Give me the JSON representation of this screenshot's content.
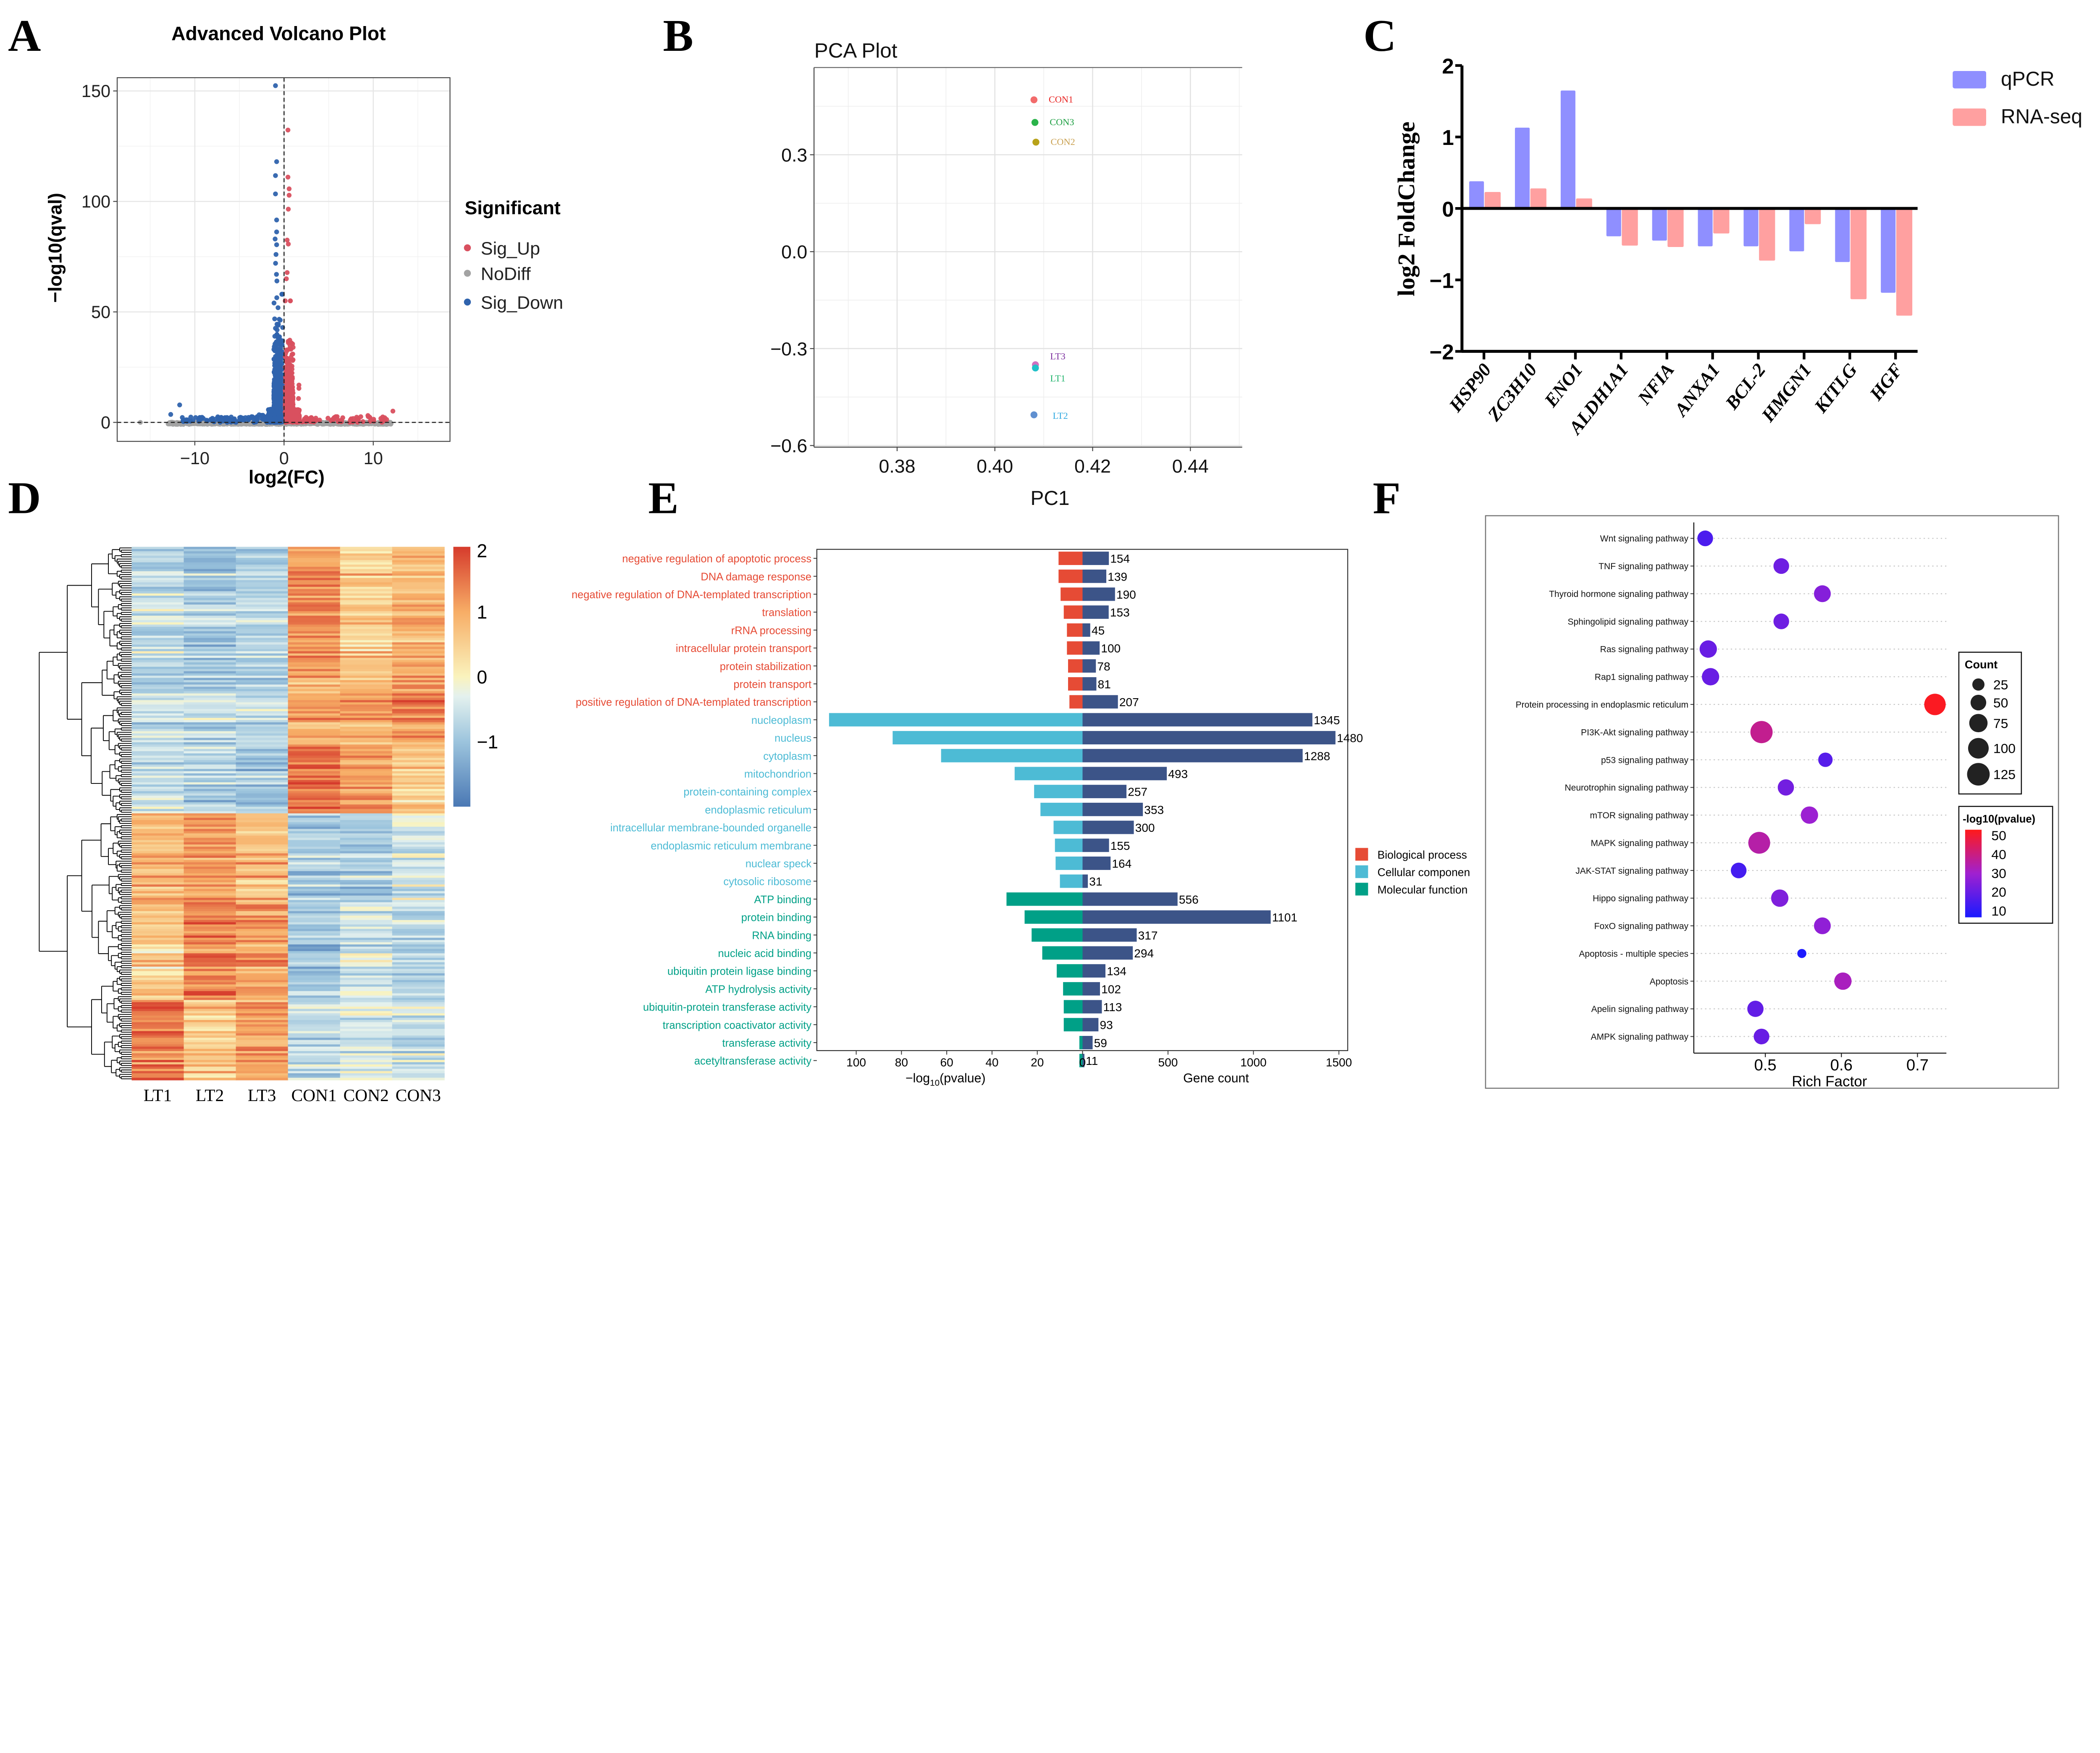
{
  "panel_labels": [
    "A",
    "B",
    "C",
    "D",
    "E",
    "F"
  ],
  "chart_data": [
    {
      "panel": "A",
      "type": "scatter",
      "title": "Advanced Volcano Plot",
      "xlabel": "log2(FC)",
      "ylabel": "−log10(qval)",
      "xlim": [
        -18.7,
        18.6
      ],
      "ylim": [
        -8.6,
        156
      ],
      "xticks": [
        -10,
        0,
        10
      ],
      "xtick_labels": [
        "−10",
        "0",
        "10"
      ],
      "yticks": [
        0,
        50,
        100,
        150
      ],
      "ytick_labels": [
        "0",
        "50",
        "100",
        "150"
      ],
      "grid": true,
      "legend_title": "Significant",
      "legend_position": "right",
      "series": [
        {
          "name": "Sig_Up",
          "color": "#d9505f"
        },
        {
          "name": "NoDiff",
          "color": "#a3a3a3"
        },
        {
          "name": "Sig_Down",
          "color": "#2f63ad"
        }
      ],
      "reference_lines": {
        "x": 0,
        "y": 0
      },
      "notable_points": [
        {
          "x": -0.96,
          "y": 152.4,
          "group": "Sig_Down"
        },
        {
          "x": -0.83,
          "y": 118,
          "group": "Sig_Down"
        },
        {
          "x": -0.96,
          "y": 111.7,
          "group": "Sig_Down"
        },
        {
          "x": -0.96,
          "y": 103.4,
          "group": "Sig_Down"
        },
        {
          "x": -0.83,
          "y": 91.6,
          "group": "Sig_Down"
        },
        {
          "x": -0.83,
          "y": 86.2,
          "group": "Sig_Down"
        },
        {
          "x": -1.0,
          "y": 83,
          "group": "Sig_Down"
        },
        {
          "x": -0.83,
          "y": 80.4,
          "group": "Sig_Down"
        },
        {
          "x": -0.9,
          "y": 76,
          "group": "Sig_Down"
        },
        {
          "x": -0.95,
          "y": 72,
          "group": "Sig_Down"
        },
        {
          "x": -0.85,
          "y": 67,
          "group": "Sig_Down"
        },
        {
          "x": -0.8,
          "y": 64,
          "group": "Sig_Down"
        },
        {
          "x": -12.7,
          "y": 3.6,
          "group": "Sig_Down"
        },
        {
          "x": -11.7,
          "y": 7.9,
          "group": "Sig_Down"
        },
        {
          "x": -11.4,
          "y": 2.2,
          "group": "Sig_Down"
        },
        {
          "x": 0.44,
          "y": 132.3,
          "group": "Sig_Up"
        },
        {
          "x": 0.44,
          "y": 111,
          "group": "Sig_Up"
        },
        {
          "x": 0.57,
          "y": 105.7,
          "group": "Sig_Up"
        },
        {
          "x": 0.57,
          "y": 102.8,
          "group": "Sig_Up"
        },
        {
          "x": 0.48,
          "y": 96.5,
          "group": "Sig_Up"
        },
        {
          "x": 0.35,
          "y": 82.5,
          "group": "Sig_Up"
        },
        {
          "x": 0.48,
          "y": 80.7,
          "group": "Sig_Up"
        },
        {
          "x": 0.35,
          "y": 67.8,
          "group": "Sig_Up"
        },
        {
          "x": 0.26,
          "y": 65,
          "group": "Sig_Up"
        },
        {
          "x": 1.67,
          "y": 16.9,
          "group": "Sig_Up"
        },
        {
          "x": 1.67,
          "y": 15.4,
          "group": "Sig_Up"
        },
        {
          "x": 1.62,
          "y": 10.8,
          "group": "Sig_Up"
        },
        {
          "x": 12.2,
          "y": 5.1,
          "group": "Sig_Up"
        },
        {
          "x": 11.5,
          "y": 1.3,
          "group": "Sig_Up"
        },
        {
          "x": 9.4,
          "y": 3.1,
          "group": "Sig_Up"
        },
        {
          "x": -16.1,
          "y": 0,
          "group": "NoDiff"
        }
      ]
    },
    {
      "panel": "B",
      "type": "scatter",
      "title": "PCA Plot",
      "xlabel": "PC1",
      "ylabel": "",
      "xlim": [
        0.363,
        0.4506
      ],
      "ylim": [
        -0.605,
        0.57
      ],
      "xticks": [
        0.38,
        0.4,
        0.42,
        0.44
      ],
      "xtick_labels": [
        "0.38",
        "0.40",
        "0.42",
        "0.44"
      ],
      "yticks": [
        -0.6,
        -0.3,
        0.0,
        0.3
      ],
      "ytick_labels": [
        "−0.6",
        "−0.3",
        "0.0",
        "0.3"
      ],
      "grid": true,
      "points": [
        {
          "label": "CON1",
          "x": 0.408,
          "y": 0.47,
          "color": "#f26b6b",
          "label_color": "#e8201e"
        },
        {
          "label": "CON3",
          "x": 0.4082,
          "y": 0.4,
          "color": "#2ab34a",
          "label_color": "#1a9e40"
        },
        {
          "label": "CON2",
          "x": 0.4084,
          "y": 0.339,
          "color": "#b8a21a",
          "label_color": "#c9a050"
        },
        {
          "label": "LT3",
          "x": 0.4083,
          "y": -0.35,
          "color": "#d070c0",
          "label_color": "#7b2f9e"
        },
        {
          "label": "LT1",
          "x": 0.4083,
          "y": -0.36,
          "color": "#22c0c8",
          "label_color": "#1fb36b"
        },
        {
          "label": "LT2",
          "x": 0.408,
          "y": -0.505,
          "color": "#6090d0",
          "label_color": "#2fa8e0"
        }
      ]
    },
    {
      "panel": "C",
      "type": "bar",
      "ylabel": "log2 FoldChange",
      "categories": [
        "HSP90",
        "ZC3H10",
        "ENO1",
        "ALDH1A1",
        "NFIA",
        "ANXA1",
        "BCL-2",
        "HMGN1",
        "KITLG",
        "HGF"
      ],
      "series": [
        {
          "name": "qPCR",
          "color": "#8f8fff",
          "values": [
            0.38,
            1.13,
            1.65,
            -0.39,
            -0.45,
            -0.53,
            -0.53,
            -0.6,
            -0.75,
            -1.18
          ]
        },
        {
          "name": "RNA-seq",
          "color": "#ffa0a0",
          "values": [
            0.23,
            0.28,
            0.14,
            -0.52,
            -0.54,
            -0.35,
            -0.73,
            -0.22,
            -1.27,
            -1.5
          ]
        }
      ],
      "ylim": [
        -2,
        2
      ],
      "yticks": [
        2,
        1,
        0,
        -1,
        -2
      ],
      "ytick_labels": [
        "2",
        "1",
        "0",
        "−1",
        "−2"
      ],
      "legend_position": "top-right"
    },
    {
      "panel": "D",
      "type": "heatmap",
      "columns": [
        "LT1",
        "LT2",
        "LT3",
        "CON1",
        "CON2",
        "CON3"
      ],
      "colorbar": {
        "min": -2,
        "max": 2,
        "ticks": [
          2,
          1,
          0,
          -1
        ],
        "tick_labels": [
          "2",
          "1",
          "0",
          "−1"
        ],
        "stops": [
          {
            "v": -2,
            "c": "#4a78b4"
          },
          {
            "v": -1,
            "c": "#9cc4dd"
          },
          {
            "v": -0.3,
            "c": "#e4f1ee"
          },
          {
            "v": 0,
            "c": "#faf3bd"
          },
          {
            "v": 1,
            "c": "#f7ad66"
          },
          {
            "v": 2,
            "c": "#d63b2c"
          }
        ]
      },
      "row_dendrogram": true,
      "row_clusters": [
        {
          "fraction": 0.25,
          "means": [
            -0.6,
            -0.9,
            -0.7,
            1.3,
            0.6,
            0.9
          ]
        },
        {
          "fraction": 0.12,
          "means": [
            -0.7,
            -0.7,
            -0.6,
            1.0,
            1.0,
            1.3
          ]
        },
        {
          "fraction": 0.13,
          "means": [
            -0.6,
            -0.8,
            -0.9,
            1.5,
            1.1,
            0.6
          ]
        },
        {
          "fraction": 0.17,
          "means": [
            0.9,
            1.2,
            0.8,
            -0.9,
            -0.8,
            -0.4
          ]
        },
        {
          "fraction": 0.18,
          "means": [
            0.5,
            1.4,
            1.1,
            -0.9,
            -0.5,
            -0.7
          ]
        },
        {
          "fraction": 0.15,
          "means": [
            1.4,
            0.6,
            1.1,
            -0.6,
            -0.4,
            -0.5
          ]
        }
      ]
    },
    {
      "panel": "E",
      "type": "bar",
      "xlabel_left": {
        "pre": "−log",
        "sub": "10",
        "post": "(pvalue)"
      },
      "xlabel_right": "Gene count",
      "left_xlim": [
        0,
        117.4
      ],
      "right_xlim": [
        0,
        1552
      ],
      "left_ticks": [
        100,
        80,
        60,
        40,
        20,
        0
      ],
      "left_tick_labels": [
        "100",
        "80",
        "60",
        "40",
        "20",
        "0"
      ],
      "right_ticks": [
        500,
        1000,
        1500
      ],
      "right_tick_labels": [
        "500",
        "1000",
        "1500"
      ],
      "count_color": "#3c5488",
      "legend_position": "right",
      "legend": [
        {
          "name": "Biological process",
          "color": "#e64b35"
        },
        {
          "name": "Cellular componen",
          "color": "#4dbbd5"
        },
        {
          "name": "Molecular function",
          "color": "#00a087"
        }
      ],
      "terms": [
        {
          "term": "negative regulation of apoptotic process",
          "group": 0,
          "neg_log10_p": 10.6,
          "count": 154
        },
        {
          "term": "DNA damage response",
          "group": 0,
          "neg_log10_p": 10.6,
          "count": 139
        },
        {
          "term": "negative regulation of DNA-templated transcription",
          "group": 0,
          "neg_log10_p": 9.7,
          "count": 190
        },
        {
          "term": "translation",
          "group": 0,
          "neg_log10_p": 8.3,
          "count": 153
        },
        {
          "term": "rRNA processing",
          "group": 0,
          "neg_log10_p": 6.9,
          "count": 45
        },
        {
          "term": "intracellular protein transport",
          "group": 0,
          "neg_log10_p": 6.9,
          "count": 100
        },
        {
          "term": "protein stabilization",
          "group": 0,
          "neg_log10_p": 6.4,
          "count": 78
        },
        {
          "term": "protein transport",
          "group": 0,
          "neg_log10_p": 6.4,
          "count": 81
        },
        {
          "term": "positive regulation of DNA-templated transcription",
          "group": 0,
          "neg_log10_p": 5.8,
          "count": 207
        },
        {
          "term": "nucleoplasm",
          "group": 1,
          "neg_log10_p": 112,
          "count": 1345
        },
        {
          "term": "nucleus",
          "group": 1,
          "neg_log10_p": 83.9,
          "count": 1480
        },
        {
          "term": "cytoplasm",
          "group": 1,
          "neg_log10_p": 62.5,
          "count": 1288
        },
        {
          "term": "mitochondrion",
          "group": 1,
          "neg_log10_p": 30,
          "count": 493
        },
        {
          "term": "protein-containing complex",
          "group": 1,
          "neg_log10_p": 21.4,
          "count": 257
        },
        {
          "term": "endoplasmic reticulum",
          "group": 1,
          "neg_log10_p": 18.6,
          "count": 353
        },
        {
          "term": "intracellular membrane-bounded organelle",
          "group": 1,
          "neg_log10_p": 12.8,
          "count": 300
        },
        {
          "term": "endoplasmic reticulum membrane",
          "group": 1,
          "neg_log10_p": 12.2,
          "count": 155
        },
        {
          "term": "nuclear speck",
          "group": 1,
          "neg_log10_p": 11.9,
          "count": 164
        },
        {
          "term": "cytosolic ribosome",
          "group": 1,
          "neg_log10_p": 10,
          "count": 31
        },
        {
          "term": "ATP binding",
          "group": 2,
          "neg_log10_p": 33.6,
          "count": 556
        },
        {
          "term": "protein binding",
          "group": 2,
          "neg_log10_p": 25.6,
          "count": 1101
        },
        {
          "term": "RNA binding",
          "group": 2,
          "neg_log10_p": 22.5,
          "count": 317
        },
        {
          "term": "nucleic acid binding",
          "group": 2,
          "neg_log10_p": 17.8,
          "count": 294
        },
        {
          "term": "ubiquitin protein ligase binding",
          "group": 2,
          "neg_log10_p": 11.4,
          "count": 134
        },
        {
          "term": "ATP hydrolysis activity",
          "group": 2,
          "neg_log10_p": 8.6,
          "count": 102
        },
        {
          "term": "ubiquitin-protein transferase activity",
          "group": 2,
          "neg_log10_p": 8.3,
          "count": 113
        },
        {
          "term": "transcription coactivator activity",
          "group": 2,
          "neg_log10_p": 8.3,
          "count": 93
        },
        {
          "term": "transferase activity",
          "group": 2,
          "neg_log10_p": 1.4,
          "count": 59
        },
        {
          "term": "acetyltransferase activity",
          "group": 2,
          "neg_log10_p": 1.4,
          "count": 11
        }
      ]
    },
    {
      "panel": "F",
      "type": "scatter",
      "xlabel": "Rich Factor",
      "xlim": [
        0.406,
        0.738
      ],
      "xticks": [
        0.5,
        0.6,
        0.7
      ],
      "xtick_labels": [
        "0.5",
        "0.6",
        "0.7"
      ],
      "pathways": [
        {
          "name": "Wnt signaling pathway",
          "rich_factor": 0.421,
          "count": 50,
          "neg_log10_p": 15
        },
        {
          "name": "TNF  signaling pathway",
          "rich_factor": 0.521,
          "count": 50,
          "neg_log10_p": 21
        },
        {
          "name": "Thyroid hormone signaling pathway",
          "rich_factor": 0.575,
          "count": 60,
          "neg_log10_p": 25
        },
        {
          "name": "Sphingolipid signaling pathway",
          "rich_factor": 0.521,
          "count": 50,
          "neg_log10_p": 21
        },
        {
          "name": "Ras signaling pathway",
          "rich_factor": 0.425,
          "count": 65,
          "neg_log10_p": 20
        },
        {
          "name": "Rap1 signaling pathway",
          "rich_factor": 0.428,
          "count": 65,
          "neg_log10_p": 20
        },
        {
          "name": "Protein processing in endoplasmic reticulum",
          "rich_factor": 0.723,
          "count": 110,
          "neg_log10_p": 52
        },
        {
          "name": "PI3K-Akt signaling pathway",
          "rich_factor": 0.495,
          "count": 120,
          "neg_log10_p": 38
        },
        {
          "name": "p53 signaling pathway",
          "rich_factor": 0.579,
          "count": 40,
          "neg_log10_p": 17
        },
        {
          "name": "Neurotrophin signaling pathway",
          "rich_factor": 0.527,
          "count": 55,
          "neg_log10_p": 22
        },
        {
          "name": "mTOR signaling pathway",
          "rich_factor": 0.558,
          "count": 65,
          "neg_log10_p": 29
        },
        {
          "name": "MAPK signaling pathway",
          "rich_factor": 0.492,
          "count": 115,
          "neg_log10_p": 35
        },
        {
          "name": "JAK-STAT signaling pathway",
          "rich_factor": 0.465,
          "count": 50,
          "neg_log10_p": 14
        },
        {
          "name": "Hippo signaling pathway",
          "rich_factor": 0.519,
          "count": 65,
          "neg_log10_p": 24
        },
        {
          "name": "FoxO signaling pathway",
          "rich_factor": 0.575,
          "count": 60,
          "neg_log10_p": 27
        },
        {
          "name": "Apoptosis - multiple species",
          "rich_factor": 0.548,
          "count": 10,
          "neg_log10_p": 7
        },
        {
          "name": "Apoptosis",
          "rich_factor": 0.602,
          "count": 65,
          "neg_log10_p": 32
        },
        {
          "name": "Apelin signaling pathway",
          "rich_factor": 0.487,
          "count": 55,
          "neg_log10_p": 19
        },
        {
          "name": "AMPK signaling pathway",
          "rich_factor": 0.495,
          "count": 50,
          "neg_log10_p": 20
        }
      ],
      "size_legend": {
        "title": "Count",
        "values": [
          25,
          50,
          75,
          100,
          125
        ],
        "labels": [
          "25",
          "50",
          "75",
          "100",
          "125"
        ]
      },
      "color_legend": {
        "title": "-log10(pvalue)",
        "ticks": [
          50,
          40,
          30,
          20,
          10
        ],
        "tick_labels": [
          "50",
          "40",
          "30",
          "20",
          "10"
        ],
        "min": 6.5,
        "max": 53,
        "low_color": "#1a1aff",
        "high_color": "#ff1a1a"
      }
    }
  ]
}
